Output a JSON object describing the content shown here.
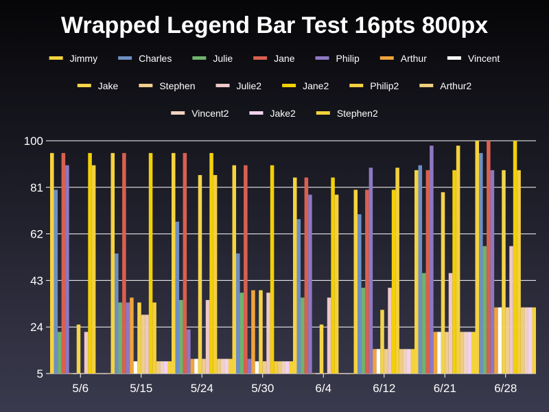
{
  "chart_data": {
    "type": "bar",
    "title": "Wrapped Legend Bar Test 16pts 800px",
    "xlabel": "",
    "ylabel": "",
    "ylim": [
      5,
      100
    ],
    "yticks": [
      5,
      24,
      43,
      62,
      81,
      100
    ],
    "grid": true,
    "legend_position": "top",
    "categories": [
      "5/6",
      "5/15",
      "5/24",
      "5/30",
      "6/4",
      "6/12",
      "6/21",
      "6/28"
    ],
    "series": [
      {
        "name": "Jimmy",
        "color": "#f5d33f",
        "values": [
          95,
          95,
          95,
          90,
          85,
          80,
          88,
          100
        ]
      },
      {
        "name": "Charles",
        "color": "#6e8fc4",
        "values": [
          80,
          54,
          67,
          54,
          68,
          70,
          90,
          95
        ]
      },
      {
        "name": "Julie",
        "color": "#6fb36f",
        "values": [
          22,
          34,
          35,
          38,
          36,
          40,
          46,
          57
        ]
      },
      {
        "name": "Jane",
        "color": "#d9604f",
        "values": [
          95,
          95,
          95,
          90,
          85,
          80,
          88,
          100
        ]
      },
      {
        "name": "Philip",
        "color": "#8e78c2",
        "values": [
          90,
          34,
          23,
          11,
          78,
          89,
          98,
          88
        ]
      },
      {
        "name": "Arthur",
        "color": "#f0a43c",
        "values": [
          5,
          36,
          11,
          39,
          5,
          15,
          22,
          32
        ]
      },
      {
        "name": "Vincent",
        "color": "#ffffff",
        "values": [
          5,
          10,
          11,
          10,
          5,
          15,
          22,
          32
        ]
      },
      {
        "name": "Jake",
        "color": "#f3d44a",
        "values": [
          25,
          34,
          86,
          39,
          25,
          31,
          79,
          88
        ]
      },
      {
        "name": "Stephen",
        "color": "#efce8c",
        "values": [
          5,
          29,
          11,
          10,
          5,
          15,
          22,
          32
        ]
      },
      {
        "name": "Julie2",
        "color": "#eec8c8",
        "values": [
          22,
          29,
          35,
          38,
          36,
          40,
          46,
          57
        ]
      },
      {
        "name": "Jane2",
        "color": "#f2d008",
        "values": [
          95,
          95,
          95,
          90,
          85,
          80,
          88,
          100
        ]
      },
      {
        "name": "Philip2",
        "color": "#f3d040",
        "values": [
          90,
          34,
          86,
          10,
          78,
          89,
          98,
          88
        ]
      },
      {
        "name": "Arthur2",
        "color": "#efcc80",
        "values": [
          5,
          10,
          11,
          10,
          5,
          15,
          22,
          32
        ]
      },
      {
        "name": "Vincent2",
        "color": "#efd2c0",
        "values": [
          5,
          10,
          11,
          10,
          5,
          15,
          22,
          32
        ]
      },
      {
        "name": "Jake2",
        "color": "#f2d2f0",
        "values": [
          5,
          10,
          11,
          10,
          5,
          15,
          22,
          32
        ]
      },
      {
        "name": "Stephen2",
        "color": "#f4d23a",
        "values": [
          5,
          10,
          11,
          10,
          5,
          15,
          22,
          32
        ]
      }
    ]
  }
}
